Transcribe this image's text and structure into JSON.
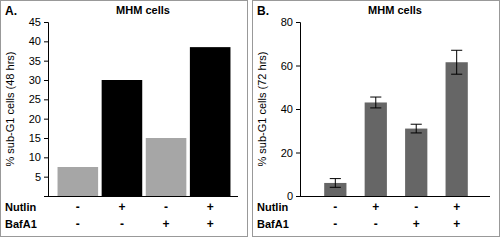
{
  "chart_data": [
    {
      "type": "bar",
      "panel": "A.",
      "title": "MHM cells",
      "y_label": "% sub-G1 cells (48 hrs)",
      "categories": [
        null,
        null,
        null,
        null
      ],
      "values": [
        7.5,
        30,
        15,
        38.5
      ],
      "colors": [
        "#a6a6a6",
        "#000000",
        "#a6a6a6",
        "#000000"
      ],
      "ylim": [
        0,
        45
      ],
      "yticks": [
        5,
        10,
        15,
        20,
        25,
        30,
        35,
        40,
        45
      ],
      "treatments": [
        {
          "label": "Nutlin",
          "signs": [
            "-",
            "+",
            "-",
            "+"
          ]
        },
        {
          "label": "BafA1",
          "signs": [
            "-",
            "-",
            "+",
            "+"
          ]
        }
      ]
    },
    {
      "type": "bar",
      "panel": "B.",
      "title": "MHM cells",
      "y_label": "% sub-G1 cells (72 hrs)",
      "categories": [
        null,
        null,
        null,
        null
      ],
      "values": [
        6,
        43,
        31,
        61.5
      ],
      "errors": [
        2,
        2.5,
        2,
        5.5
      ],
      "color": "#666666",
      "ylim": [
        0,
        80
      ],
      "yticks": [
        0,
        20,
        40,
        60,
        80
      ],
      "treatments": [
        {
          "label": "Nutlin",
          "signs": [
            "-",
            "+",
            "-",
            "+"
          ]
        },
        {
          "label": "BafA1",
          "signs": [
            "-",
            "-",
            "+",
            "+"
          ]
        }
      ]
    }
  ]
}
